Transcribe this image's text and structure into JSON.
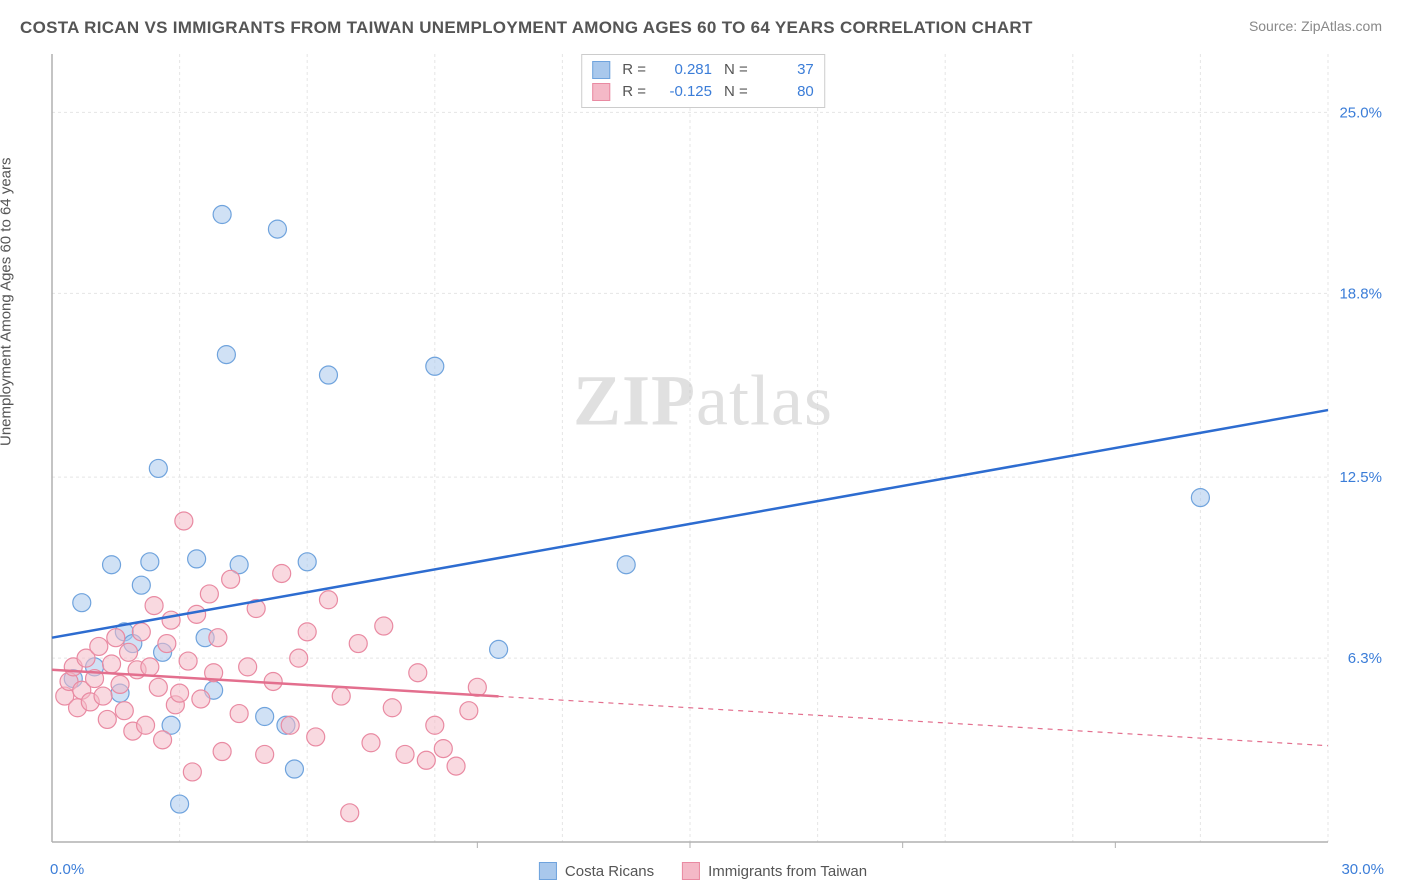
{
  "title": "COSTA RICAN VS IMMIGRANTS FROM TAIWAN UNEMPLOYMENT AMONG AGES 60 TO 64 YEARS CORRELATION CHART",
  "source_label": "Source: ",
  "source_link": "ZipAtlas.com",
  "ylabel": "Unemployment Among Ages 60 to 64 years",
  "watermark_bold": "ZIP",
  "watermark_light": "atlas",
  "chart": {
    "type": "scatter",
    "xlim": [
      0,
      30
    ],
    "ylim": [
      0,
      27
    ],
    "x_min_label": "0.0%",
    "x_max_label": "30.0%",
    "y_ticks": [
      {
        "v": 6.3,
        "label": "6.3%"
      },
      {
        "v": 12.5,
        "label": "12.5%"
      },
      {
        "v": 18.8,
        "label": "18.8%"
      },
      {
        "v": 25.0,
        "label": "25.0%"
      }
    ],
    "x_grid": [
      3,
      6,
      9,
      12,
      15,
      18,
      21,
      24,
      27,
      30
    ],
    "x_grid_major": [
      10,
      15,
      20,
      25
    ],
    "background_color": "#ffffff",
    "grid_color": "#e5e5e5",
    "grid_major_color": "#cccccc",
    "axis_color": "#b0b0b0",
    "tick_label_color": "#3b7dd8",
    "marker_radius": 9,
    "marker_opacity": 0.55,
    "series": [
      {
        "name": "Costa Ricans",
        "color_fill": "#a9c8ec",
        "color_stroke": "#6fa3dd",
        "R": "0.281",
        "N": "37",
        "trend": {
          "x1": 0,
          "y1": 7.0,
          "x2": 30,
          "y2": 14.8,
          "color": "#2d6cd0",
          "width": 2.5,
          "solid_until_x": 30
        },
        "points": [
          [
            0.5,
            5.6
          ],
          [
            0.7,
            8.2
          ],
          [
            1.0,
            6.0
          ],
          [
            1.4,
            9.5
          ],
          [
            1.6,
            5.1
          ],
          [
            1.7,
            7.2
          ],
          [
            1.9,
            6.8
          ],
          [
            2.1,
            8.8
          ],
          [
            2.3,
            9.6
          ],
          [
            2.5,
            12.8
          ],
          [
            2.6,
            6.5
          ],
          [
            2.8,
            4.0
          ],
          [
            3.0,
            1.3
          ],
          [
            3.4,
            9.7
          ],
          [
            3.6,
            7.0
          ],
          [
            3.8,
            5.2
          ],
          [
            4.0,
            21.5
          ],
          [
            4.1,
            16.7
          ],
          [
            4.4,
            9.5
          ],
          [
            5.0,
            4.3
          ],
          [
            5.3,
            21.0
          ],
          [
            5.5,
            4.0
          ],
          [
            5.7,
            2.5
          ],
          [
            6.0,
            9.6
          ],
          [
            6.5,
            16.0
          ],
          [
            9.0,
            16.3
          ],
          [
            10.5,
            6.6
          ],
          [
            13.5,
            9.5
          ],
          [
            27.0,
            11.8
          ]
        ]
      },
      {
        "name": "Immigrants from Taiwan",
        "color_fill": "#f4b9c7",
        "color_stroke": "#e98aa2",
        "R": "-0.125",
        "N": "80",
        "trend": {
          "x1": 0,
          "y1": 5.9,
          "x2": 30,
          "y2": 3.3,
          "color": "#e36f8e",
          "width": 2.5,
          "solid_until_x": 10.5
        },
        "points": [
          [
            0.3,
            5.0
          ],
          [
            0.4,
            5.5
          ],
          [
            0.5,
            6.0
          ],
          [
            0.6,
            4.6
          ],
          [
            0.7,
            5.2
          ],
          [
            0.8,
            6.3
          ],
          [
            0.9,
            4.8
          ],
          [
            1.0,
            5.6
          ],
          [
            1.1,
            6.7
          ],
          [
            1.2,
            5.0
          ],
          [
            1.3,
            4.2
          ],
          [
            1.4,
            6.1
          ],
          [
            1.5,
            7.0
          ],
          [
            1.6,
            5.4
          ],
          [
            1.7,
            4.5
          ],
          [
            1.8,
            6.5
          ],
          [
            1.9,
            3.8
          ],
          [
            2.0,
            5.9
          ],
          [
            2.1,
            7.2
          ],
          [
            2.2,
            4.0
          ],
          [
            2.3,
            6.0
          ],
          [
            2.4,
            8.1
          ],
          [
            2.5,
            5.3
          ],
          [
            2.6,
            3.5
          ],
          [
            2.7,
            6.8
          ],
          [
            2.8,
            7.6
          ],
          [
            2.9,
            4.7
          ],
          [
            3.0,
            5.1
          ],
          [
            3.1,
            11.0
          ],
          [
            3.2,
            6.2
          ],
          [
            3.3,
            2.4
          ],
          [
            3.4,
            7.8
          ],
          [
            3.5,
            4.9
          ],
          [
            3.7,
            8.5
          ],
          [
            3.8,
            5.8
          ],
          [
            3.9,
            7.0
          ],
          [
            4.0,
            3.1
          ],
          [
            4.2,
            9.0
          ],
          [
            4.4,
            4.4
          ],
          [
            4.6,
            6.0
          ],
          [
            4.8,
            8.0
          ],
          [
            5.0,
            3.0
          ],
          [
            5.2,
            5.5
          ],
          [
            5.4,
            9.2
          ],
          [
            5.6,
            4.0
          ],
          [
            5.8,
            6.3
          ],
          [
            6.0,
            7.2
          ],
          [
            6.2,
            3.6
          ],
          [
            6.5,
            8.3
          ],
          [
            6.8,
            5.0
          ],
          [
            7.0,
            1.0
          ],
          [
            7.2,
            6.8
          ],
          [
            7.5,
            3.4
          ],
          [
            7.8,
            7.4
          ],
          [
            8.0,
            4.6
          ],
          [
            8.3,
            3.0
          ],
          [
            8.6,
            5.8
          ],
          [
            8.8,
            2.8
          ],
          [
            9.0,
            4.0
          ],
          [
            9.2,
            3.2
          ],
          [
            9.5,
            2.6
          ],
          [
            9.8,
            4.5
          ],
          [
            10.0,
            5.3
          ]
        ]
      }
    ]
  },
  "legend_top": {
    "r_label": "R =",
    "n_label": "N ="
  },
  "legend_bottom": {}
}
